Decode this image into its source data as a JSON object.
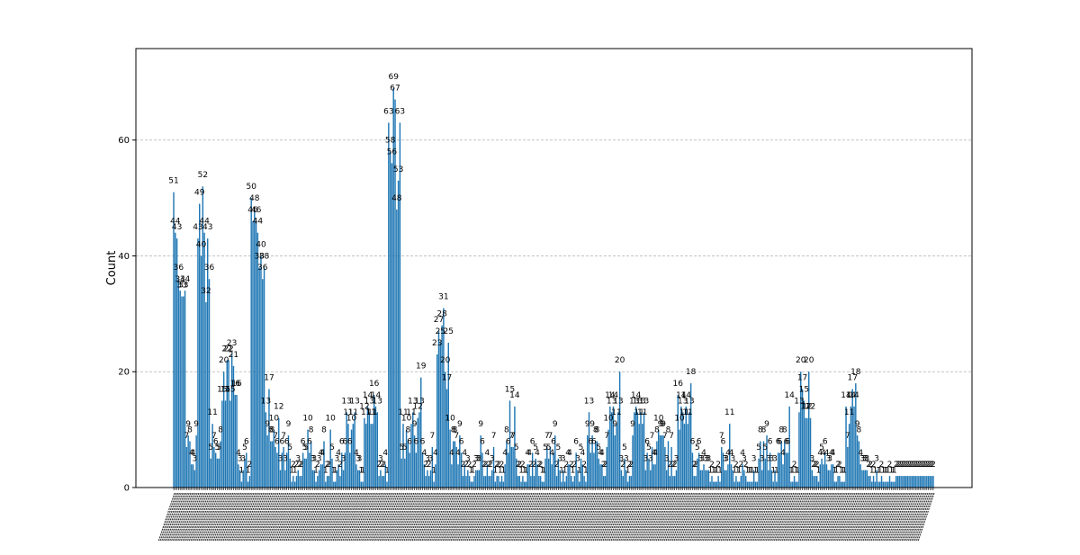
{
  "chart_data": {
    "type": "bar",
    "title": "",
    "xlabel": "",
    "ylabel": "Count",
    "ylim": [
      0,
      75.8
    ],
    "yticks": [
      0,
      20,
      40,
      60
    ],
    "grid": "y-dashed",
    "legend": "none",
    "colors": {
      "bar": "#1f77b4",
      "bar_edge": "#ffffff",
      "grid": "#b0b0b0",
      "axis": "#000000"
    },
    "values": [
      51,
      44,
      43,
      36,
      34,
      33,
      33,
      34,
      7,
      9,
      8,
      4,
      4,
      3,
      9,
      43,
      49,
      40,
      52,
      44,
      32,
      43,
      36,
      5,
      11,
      7,
      6,
      5,
      5,
      8,
      15,
      20,
      15,
      22,
      22,
      15,
      23,
      21,
      16,
      16,
      4,
      3,
      1,
      3,
      5,
      6,
      1,
      2,
      50,
      46,
      48,
      46,
      44,
      38,
      40,
      36,
      38,
      13,
      9,
      17,
      8,
      8,
      10,
      7,
      6,
      12,
      3,
      6,
      7,
      3,
      6,
      9,
      5,
      1,
      2,
      1,
      2,
      3,
      2,
      2,
      6,
      5,
      5,
      10,
      6,
      8,
      3,
      3,
      1,
      2,
      3,
      4,
      4,
      8,
      1,
      2,
      2,
      10,
      5,
      1,
      1,
      3,
      4,
      2,
      6,
      3,
      6,
      13,
      11,
      6,
      10,
      11,
      13,
      4,
      3,
      3,
      1,
      1,
      12,
      11,
      14,
      13,
      11,
      11,
      16,
      14,
      13,
      2,
      3,
      2,
      2,
      4,
      1,
      63,
      58,
      56,
      69,
      67,
      48,
      53,
      63,
      5,
      11,
      5,
      10,
      8,
      6,
      11,
      13,
      9,
      6,
      12,
      13,
      19,
      6,
      4,
      2,
      3,
      2,
      3,
      7,
      1,
      4,
      23,
      27,
      25,
      28,
      31,
      20,
      17,
      25,
      10,
      4,
      8,
      8,
      7,
      4,
      9,
      6,
      2,
      4,
      2,
      3,
      2,
      1,
      1,
      2,
      3,
      3,
      3,
      9,
      6,
      2,
      2,
      4,
      2,
      2,
      3,
      7,
      1,
      2,
      2,
      1,
      2,
      1,
      4,
      8,
      6,
      15,
      7,
      7,
      14,
      5,
      2,
      2,
      1,
      2,
      1,
      1,
      4,
      4,
      2,
      6,
      2,
      5,
      4,
      2,
      2,
      1,
      1,
      5,
      7,
      5,
      7,
      4,
      6,
      9,
      2,
      5,
      3,
      1,
      3,
      1,
      2,
      4,
      4,
      2,
      1,
      2,
      6,
      3,
      1,
      5,
      4,
      2,
      1,
      9,
      13,
      6,
      9,
      6,
      8,
      8,
      5,
      4,
      4,
      2,
      2,
      7,
      10,
      14,
      13,
      14,
      9,
      11,
      13,
      20,
      3,
      2,
      5,
      3,
      1,
      2,
      2,
      9,
      13,
      14,
      13,
      11,
      13,
      11,
      13,
      3,
      6,
      5,
      3,
      7,
      4,
      4,
      8,
      10,
      9,
      9,
      9,
      7,
      3,
      8,
      2,
      7,
      2,
      2,
      3,
      16,
      10,
      14,
      13,
      11,
      14,
      11,
      13,
      18,
      6,
      2,
      2,
      5,
      6,
      3,
      3,
      4,
      3,
      3,
      3,
      1,
      2,
      1,
      1,
      1,
      2,
      1,
      7,
      6,
      3,
      3,
      4,
      11,
      4,
      3,
      1,
      2,
      1,
      1,
      2,
      4,
      3,
      2,
      1,
      1,
      1,
      1,
      3,
      1,
      1,
      5,
      8,
      3,
      8,
      5,
      9,
      3,
      6,
      3,
      1,
      3,
      1,
      6,
      6,
      8,
      4,
      8,
      6,
      6,
      14,
      1,
      1,
      2,
      1,
      1,
      13,
      20,
      17,
      15,
      12,
      12,
      20,
      12,
      3,
      2,
      2,
      2,
      1,
      4,
      5,
      4,
      6,
      4,
      3,
      3,
      4,
      4,
      1,
      1,
      2,
      2,
      1,
      1,
      1,
      14,
      7,
      11,
      14,
      17,
      14,
      18,
      9,
      8,
      4,
      3,
      3,
      3,
      3,
      2,
      2,
      1,
      2,
      1,
      3,
      1,
      1,
      2,
      1,
      1,
      1,
      1,
      2,
      1,
      1,
      1,
      2,
      2,
      2,
      2,
      2,
      2,
      2,
      2,
      2,
      2,
      2,
      2,
      2,
      2,
      2,
      2,
      2,
      2,
      2,
      2,
      2,
      2,
      2,
      2
    ]
  }
}
